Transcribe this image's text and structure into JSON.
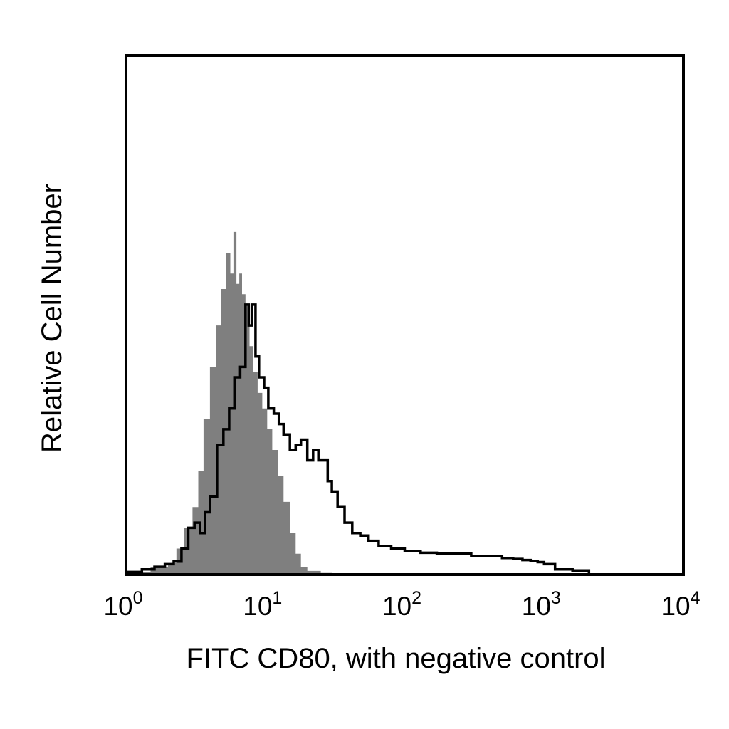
{
  "chart_data": {
    "type": "area",
    "title": "",
    "xlabel": "FITC CD80, with negative control",
    "ylabel": "Relative Cell Number",
    "x_scale": "log",
    "xlim": [
      1,
      10000
    ],
    "ylim": [
      0,
      100
    ],
    "grid": false,
    "legend": "none",
    "x_ticks": [
      {
        "base": "10",
        "exp": "0"
      },
      {
        "base": "10",
        "exp": "1"
      },
      {
        "base": "10",
        "exp": "2"
      },
      {
        "base": "10",
        "exp": "3"
      },
      {
        "base": "10",
        "exp": "4"
      }
    ],
    "series": [
      {
        "style": "filled",
        "color": "#7f7f7f",
        "x": [
          1.0,
          1.5,
          2.0,
          2.3,
          2.6,
          3.0,
          3.3,
          3.6,
          4.0,
          4.4,
          4.8,
          5.2,
          5.6,
          5.9,
          6.2,
          6.5,
          6.8,
          7.2,
          7.7,
          8.2,
          8.8,
          9.5,
          10.3,
          11.2,
          12.3,
          13.5,
          15.0,
          16.5,
          18.0,
          20.0,
          25.0,
          30.0
        ],
        "values": [
          0.5,
          1.5,
          2.2,
          5.0,
          9.0,
          13.0,
          20.0,
          30.0,
          40.0,
          48.0,
          55.0,
          62.0,
          58.0,
          66.0,
          56.0,
          58.0,
          54.0,
          52.0,
          44.0,
          39.0,
          35.0,
          32.0,
          28.0,
          24.0,
          19.0,
          14.0,
          8.0,
          4.0,
          1.5,
          0.7,
          0.3,
          0.0
        ]
      },
      {
        "style": "outline",
        "color": "#000000",
        "x": [
          1.0,
          1.3,
          1.6,
          1.9,
          2.2,
          2.5,
          2.8,
          3.1,
          3.4,
          3.7,
          4.0,
          4.5,
          5.0,
          5.5,
          6.0,
          6.6,
          7.2,
          7.6,
          8.0,
          8.5,
          9.0,
          9.8,
          10.5,
          11.5,
          12.5,
          13.5,
          15.0,
          16.5,
          18.0,
          20.0,
          22.0,
          24.0,
          26.0,
          28.0,
          30.0,
          33.0,
          37.0,
          42.0,
          48.0,
          55.0,
          65.0,
          80.0,
          100.0,
          130.0,
          170.0,
          220.0,
          300.0,
          400.0,
          500.0,
          600.0,
          700.0,
          800.0,
          900.0,
          1000.0,
          1200.0,
          1600.0,
          2100.0
        ],
        "values": [
          0.5,
          1.0,
          1.5,
          2.0,
          2.5,
          5.0,
          9.0,
          10.0,
          8.0,
          12.0,
          15.0,
          25.0,
          28.0,
          32.0,
          38.0,
          40.0,
          52.0,
          48.0,
          52.0,
          42.0,
          38.0,
          36.0,
          32.0,
          31.0,
          29.0,
          27.0,
          24.0,
          25.0,
          26.0,
          22.0,
          24.0,
          22.0,
          22.0,
          18.0,
          16.0,
          13.0,
          10.0,
          8.0,
          7.5,
          6.5,
          5.5,
          5.0,
          4.5,
          4.2,
          4.0,
          4.0,
          3.6,
          3.6,
          3.2,
          3.0,
          2.8,
          2.6,
          2.4,
          2.0,
          1.0,
          0.8,
          0.0
        ]
      }
    ]
  }
}
